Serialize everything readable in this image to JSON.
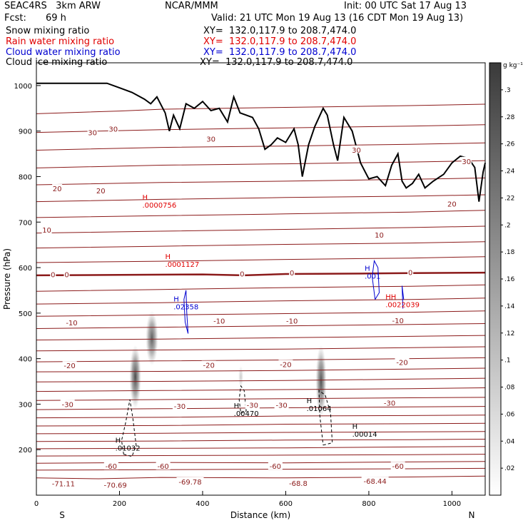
{
  "header": {
    "model": "SEAC4RS   3km ARW",
    "org": "NCAR/MMM",
    "init": "Init: 00 UTC Sat 17 Aug 13",
    "fcst_label": "Fcst:",
    "fcst_value": "69 h",
    "valid": "Valid: 21 UTC Mon 19 Aug 13 (16 CDT Mon 19 Aug 13)"
  },
  "legend": [
    {
      "label": "Snow mixing ratio",
      "xy": "XY=  132.0,117.9 to 208.7,474.0",
      "color": "#000000"
    },
    {
      "label": "Rain water mixing ratio",
      "xy": "XY=  132.0,117.9 to 208.7,474.0",
      "color": "#e00000"
    },
    {
      "label": "Cloud water mixing ratio",
      "xy": "XY=  132.0,117.9 to 208.7,474.0",
      "color": "#0000d0"
    },
    {
      "label": "Cloud ice mixing ratio",
      "xy": "XY=  132.0,117.9 to 208.7,474.0",
      "color": "#000000"
    }
  ],
  "colors": {
    "isotherm": "#8b1a1a",
    "freezing": "#8b1a1a",
    "terrain": "#000000",
    "rain": "#e00000",
    "cloud_water": "#0000d0",
    "snow": "#000000"
  },
  "chart_data": {
    "type": "cross-section",
    "xlabel": "Distance (km)",
    "ylabel": "Pressure (hPa)",
    "xlim": [
      0,
      1080
    ],
    "ylim": [
      1050,
      100
    ],
    "x_ticks": [
      0,
      200,
      400,
      600,
      800,
      1000
    ],
    "y_ticks": [
      200,
      300,
      400,
      500,
      600,
      700,
      800,
      900,
      1000
    ],
    "end_labels": {
      "left": "S",
      "right": "N"
    },
    "colorbar": {
      "unit": "g kg⁻¹",
      "ticks": [
        ".02",
        ".04",
        ".06",
        ".08",
        ".1",
        ".12",
        ".14",
        ".16",
        ".18",
        ".2",
        ".22",
        ".24",
        ".26",
        ".28",
        ".3"
      ]
    },
    "isotherm_labels": [
      {
        "text": "-71.11",
        "x": 65,
        "p": 126
      },
      {
        "text": "-70.69",
        "x": 190,
        "p": 123
      },
      {
        "text": "-69.78",
        "x": 370,
        "p": 130
      },
      {
        "text": "-68.8",
        "x": 630,
        "p": 127
      },
      {
        "text": "-68.44",
        "x": 815,
        "p": 131
      },
      {
        "text": "-60",
        "x": 180,
        "p": 164
      },
      {
        "text": "-60",
        "x": 305,
        "p": 164
      },
      {
        "text": "-60",
        "x": 575,
        "p": 164
      },
      {
        "text": "-60",
        "x": 870,
        "p": 164
      },
      {
        "text": "-30",
        "x": 75,
        "p": 300
      },
      {
        "text": "-30",
        "x": 345,
        "p": 296
      },
      {
        "text": "-30",
        "x": 520,
        "p": 298
      },
      {
        "text": "-30",
        "x": 590,
        "p": 298
      },
      {
        "text": "-30",
        "x": 850,
        "p": 303
      },
      {
        "text": "-20",
        "x": 80,
        "p": 385
      },
      {
        "text": "-20",
        "x": 415,
        "p": 386
      },
      {
        "text": "-20",
        "x": 600,
        "p": 388
      },
      {
        "text": "-20",
        "x": 880,
        "p": 392
      },
      {
        "text": "-10",
        "x": 85,
        "p": 479
      },
      {
        "text": "-10",
        "x": 440,
        "p": 483
      },
      {
        "text": "-10",
        "x": 615,
        "p": 483
      },
      {
        "text": "-10",
        "x": 870,
        "p": 484
      },
      {
        "text": "0",
        "x": 40,
        "p": 585
      },
      {
        "text": "0",
        "x": 73,
        "p": 585
      },
      {
        "text": "0",
        "x": 495,
        "p": 587
      },
      {
        "text": "0",
        "x": 615,
        "p": 589
      },
      {
        "text": "0",
        "x": 900,
        "p": 590
      },
      {
        "text": "10",
        "x": 25,
        "p": 683
      },
      {
        "text": "10",
        "x": 825,
        "p": 672
      },
      {
        "text": "20",
        "x": 50,
        "p": 774
      },
      {
        "text": "20",
        "x": 155,
        "p": 769
      },
      {
        "text": "20",
        "x": 1000,
        "p": 740
      },
      {
        "text": "30",
        "x": 135,
        "p": 897
      },
      {
        "text": "30",
        "x": 185,
        "p": 905
      },
      {
        "text": "30",
        "x": 420,
        "p": 883
      },
      {
        "text": "30",
        "x": 770,
        "p": 859
      },
      {
        "text": "30",
        "x": 1035,
        "p": 834
      }
    ],
    "extrema": [
      {
        "field": "snow",
        "mark": "H",
        "value": ".01032",
        "x": 190,
        "p": 215
      },
      {
        "field": "snow",
        "mark": "H",
        "value": ".00470",
        "x": 475,
        "p": 291
      },
      {
        "field": "snow",
        "mark": "H",
        "value": ".01064",
        "x": 650,
        "p": 302
      },
      {
        "field": "snow",
        "mark": "H",
        "value": ".00014",
        "x": 760,
        "p": 246
      },
      {
        "field": "cloud_water",
        "mark": "H",
        "value": ".02358",
        "x": 330,
        "p": 526
      },
      {
        "field": "cloud_water",
        "mark": "H",
        "value": ".001",
        "x": 790,
        "p": 593
      },
      {
        "field": "rain",
        "mark": "HH",
        "value": ".0022039",
        "x": 840,
        "p": 530
      },
      {
        "field": "rain",
        "mark": "H",
        "value": ".0001127",
        "x": 310,
        "p": 619
      },
      {
        "field": "rain",
        "mark": "H",
        "value": ".0000756",
        "x": 255,
        "p": 749
      }
    ],
    "isotherms": [
      [
        [
          0,
          138
        ],
        [
          150,
          136
        ],
        [
          300,
          139
        ],
        [
          600,
          138
        ],
        [
          900,
          140
        ],
        [
          1080,
          142
        ]
      ],
      [
        [
          0,
          155
        ],
        [
          300,
          156
        ],
        [
          600,
          157
        ],
        [
          900,
          158
        ],
        [
          1080,
          159
        ]
      ],
      [
        [
          0,
          170
        ],
        [
          300,
          172
        ],
        [
          600,
          171
        ],
        [
          900,
          173
        ],
        [
          1080,
          174
        ]
      ],
      [
        [
          0,
          186
        ],
        [
          300,
          187
        ],
        [
          600,
          188
        ],
        [
          900,
          189
        ],
        [
          1080,
          190
        ]
      ],
      [
        [
          0,
          202
        ],
        [
          300,
          203
        ],
        [
          600,
          204
        ],
        [
          900,
          206
        ],
        [
          1080,
          207
        ]
      ],
      [
        [
          0,
          218
        ],
        [
          300,
          219
        ],
        [
          600,
          221
        ],
        [
          900,
          222
        ],
        [
          1080,
          223
        ]
      ],
      [
        [
          0,
          235
        ],
        [
          300,
          236
        ],
        [
          600,
          238
        ],
        [
          900,
          239
        ],
        [
          1080,
          240
        ]
      ],
      [
        [
          0,
          252
        ],
        [
          300,
          253
        ],
        [
          600,
          256
        ],
        [
          900,
          257
        ],
        [
          1080,
          258
        ]
      ],
      [
        [
          0,
          270
        ],
        [
          300,
          271
        ],
        [
          600,
          274
        ],
        [
          900,
          275
        ],
        [
          1080,
          276
        ]
      ],
      [
        [
          0,
          288
        ],
        [
          300,
          290
        ],
        [
          600,
          292
        ],
        [
          900,
          294
        ],
        [
          1080,
          295
        ]
      ],
      [
        [
          0,
          308
        ],
        [
          300,
          310
        ],
        [
          600,
          312
        ],
        [
          900,
          314
        ],
        [
          1080,
          315
        ]
      ],
      [
        [
          0,
          328
        ],
        [
          300,
          330
        ],
        [
          600,
          332
        ],
        [
          900,
          334
        ],
        [
          1080,
          336
        ]
      ],
      [
        [
          0,
          349
        ],
        [
          300,
          350
        ],
        [
          600,
          352
        ],
        [
          900,
          355
        ],
        [
          1080,
          357
        ]
      ],
      [
        [
          0,
          371
        ],
        [
          300,
          372
        ],
        [
          600,
          374
        ],
        [
          900,
          377
        ],
        [
          1080,
          379
        ]
      ],
      [
        [
          0,
          393
        ],
        [
          300,
          395
        ],
        [
          600,
          397
        ],
        [
          900,
          400
        ],
        [
          1080,
          402
        ]
      ],
      [
        [
          0,
          417
        ],
        [
          300,
          419
        ],
        [
          600,
          421
        ],
        [
          900,
          424
        ],
        [
          1080,
          426
        ]
      ],
      [
        [
          0,
          441
        ],
        [
          300,
          443
        ],
        [
          600,
          446
        ],
        [
          900,
          449
        ],
        [
          1080,
          451
        ]
      ],
      [
        [
          0,
          466
        ],
        [
          300,
          469
        ],
        [
          600,
          472
        ],
        [
          900,
          475
        ],
        [
          1080,
          477
        ]
      ],
      [
        [
          0,
          493
        ],
        [
          300,
          496
        ],
        [
          600,
          499
        ],
        [
          900,
          502
        ],
        [
          1080,
          505
        ]
      ],
      [
        [
          0,
          520
        ],
        [
          300,
          523
        ],
        [
          600,
          527
        ],
        [
          900,
          530
        ],
        [
          1080,
          533
        ]
      ],
      [
        [
          0,
          548
        ],
        [
          300,
          552
        ],
        [
          600,
          556
        ],
        [
          900,
          559
        ],
        [
          1080,
          562
        ]
      ],
      [
        [
          0,
          611
        ],
        [
          300,
          614
        ],
        [
          600,
          618
        ],
        [
          900,
          621
        ],
        [
          1080,
          624
        ]
      ],
      [
        [
          0,
          643
        ],
        [
          300,
          647
        ],
        [
          600,
          651
        ],
        [
          900,
          654
        ],
        [
          1080,
          657
        ]
      ],
      [
        [
          0,
          676
        ],
        [
          300,
          680
        ],
        [
          600,
          684
        ],
        [
          900,
          688
        ],
        [
          1080,
          691
        ]
      ],
      [
        [
          0,
          710
        ],
        [
          300,
          714
        ],
        [
          600,
          718
        ],
        [
          900,
          722
        ],
        [
          1080,
          726
        ]
      ],
      [
        [
          0,
          745
        ],
        [
          300,
          750
        ],
        [
          600,
          754
        ],
        [
          900,
          757
        ],
        [
          1080,
          760
        ]
      ],
      [
        [
          0,
          782
        ],
        [
          300,
          787
        ],
        [
          600,
          790
        ],
        [
          900,
          794
        ],
        [
          1080,
          797
        ]
      ],
      [
        [
          0,
          819
        ],
        [
          300,
          825
        ],
        [
          600,
          828
        ],
        [
          900,
          832
        ],
        [
          1080,
          835
        ]
      ],
      [
        [
          0,
          858
        ],
        [
          300,
          864
        ],
        [
          600,
          867
        ],
        [
          900,
          871
        ],
        [
          1080,
          874
        ]
      ],
      [
        [
          0,
          897
        ],
        [
          300,
          903
        ],
        [
          600,
          907
        ],
        [
          900,
          911
        ],
        [
          1080,
          914
        ]
      ],
      [
        [
          0,
          938
        ],
        [
          200,
          944
        ],
        [
          300,
          948
        ],
        [
          600,
          952
        ],
        [
          900,
          956
        ],
        [
          1080,
          959
        ]
      ]
    ],
    "freezing_level": [
      [
        0,
        583
      ],
      [
        200,
        584
      ],
      [
        400,
        585
      ],
      [
        500,
        583
      ],
      [
        600,
        586
      ],
      [
        800,
        587
      ],
      [
        900,
        588
      ],
      [
        1080,
        589
      ]
    ],
    "terrain": [
      [
        0,
        1005
      ],
      [
        170,
        1005
      ],
      [
        200,
        995
      ],
      [
        230,
        985
      ],
      [
        260,
        970
      ],
      [
        275,
        960
      ],
      [
        290,
        975
      ],
      [
        310,
        940
      ],
      [
        320,
        900
      ],
      [
        330,
        935
      ],
      [
        345,
        905
      ],
      [
        360,
        960
      ],
      [
        380,
        950
      ],
      [
        400,
        965
      ],
      [
        420,
        945
      ],
      [
        440,
        950
      ],
      [
        460,
        920
      ],
      [
        475,
        975
      ],
      [
        490,
        940
      ],
      [
        520,
        930
      ],
      [
        535,
        905
      ],
      [
        550,
        860
      ],
      [
        565,
        870
      ],
      [
        580,
        885
      ],
      [
        600,
        875
      ],
      [
        620,
        905
      ],
      [
        630,
        870
      ],
      [
        640,
        800
      ],
      [
        655,
        870
      ],
      [
        670,
        910
      ],
      [
        690,
        950
      ],
      [
        700,
        935
      ],
      [
        715,
        870
      ],
      [
        725,
        835
      ],
      [
        740,
        930
      ],
      [
        760,
        900
      ],
      [
        780,
        830
      ],
      [
        800,
        795
      ],
      [
        820,
        800
      ],
      [
        840,
        780
      ],
      [
        855,
        825
      ],
      [
        870,
        850
      ],
      [
        880,
        790
      ],
      [
        890,
        775
      ],
      [
        905,
        785
      ],
      [
        920,
        805
      ],
      [
        935,
        775
      ],
      [
        955,
        790
      ],
      [
        980,
        805
      ],
      [
        1000,
        830
      ],
      [
        1020,
        845
      ],
      [
        1040,
        840
      ],
      [
        1055,
        820
      ],
      [
        1065,
        745
      ],
      [
        1075,
        810
      ],
      [
        1080,
        830
      ]
    ],
    "shading": [
      {
        "x": 238,
        "p": 360,
        "rx": 14,
        "rp": 70,
        "v": 0.28
      },
      {
        "x": 278,
        "p": 445,
        "rx": 15,
        "rp": 60,
        "v": 0.25
      },
      {
        "x": 685,
        "p": 350,
        "rx": 13,
        "rp": 80,
        "v": 0.27
      },
      {
        "x": 492,
        "p": 360,
        "rx": 6,
        "rp": 25,
        "v": 0.08
      }
    ],
    "contours": [
      {
        "field": "snow",
        "dash": true,
        "path": [
          [
            210,
            190
          ],
          [
            230,
            185
          ],
          [
            240,
            210
          ],
          [
            232,
            270
          ],
          [
            225,
            310
          ],
          [
            215,
            260
          ],
          [
            205,
            220
          ],
          [
            210,
            190
          ]
        ]
      },
      {
        "field": "snow",
        "dash": true,
        "path": [
          [
            492,
            280
          ],
          [
            505,
            285
          ],
          [
            500,
            330
          ],
          [
            492,
            340
          ],
          [
            488,
            310
          ],
          [
            492,
            280
          ]
        ]
      },
      {
        "field": "snow",
        "dash": true,
        "path": [
          [
            690,
            210
          ],
          [
            712,
            215
          ],
          [
            708,
            280
          ],
          [
            695,
            320
          ],
          [
            680,
            330
          ],
          [
            682,
            275
          ],
          [
            690,
            210
          ]
        ]
      },
      {
        "field": "cloud_water",
        "dash": false,
        "path": [
          [
            365,
            455
          ],
          [
            362,
            500
          ],
          [
            360,
            550
          ],
          [
            355,
            530
          ],
          [
            358,
            480
          ],
          [
            365,
            455
          ]
        ]
      },
      {
        "field": "cloud_water",
        "dash": false,
        "path": [
          [
            815,
            530
          ],
          [
            825,
            545
          ],
          [
            822,
            600
          ],
          [
            813,
            615
          ],
          [
            808,
            580
          ],
          [
            815,
            530
          ]
        ]
      },
      {
        "field": "cloud_water",
        "dash": false,
        "path": [
          [
            882,
            510
          ],
          [
            880,
            560
          ],
          [
            884,
            530
          ]
        ]
      }
    ]
  }
}
